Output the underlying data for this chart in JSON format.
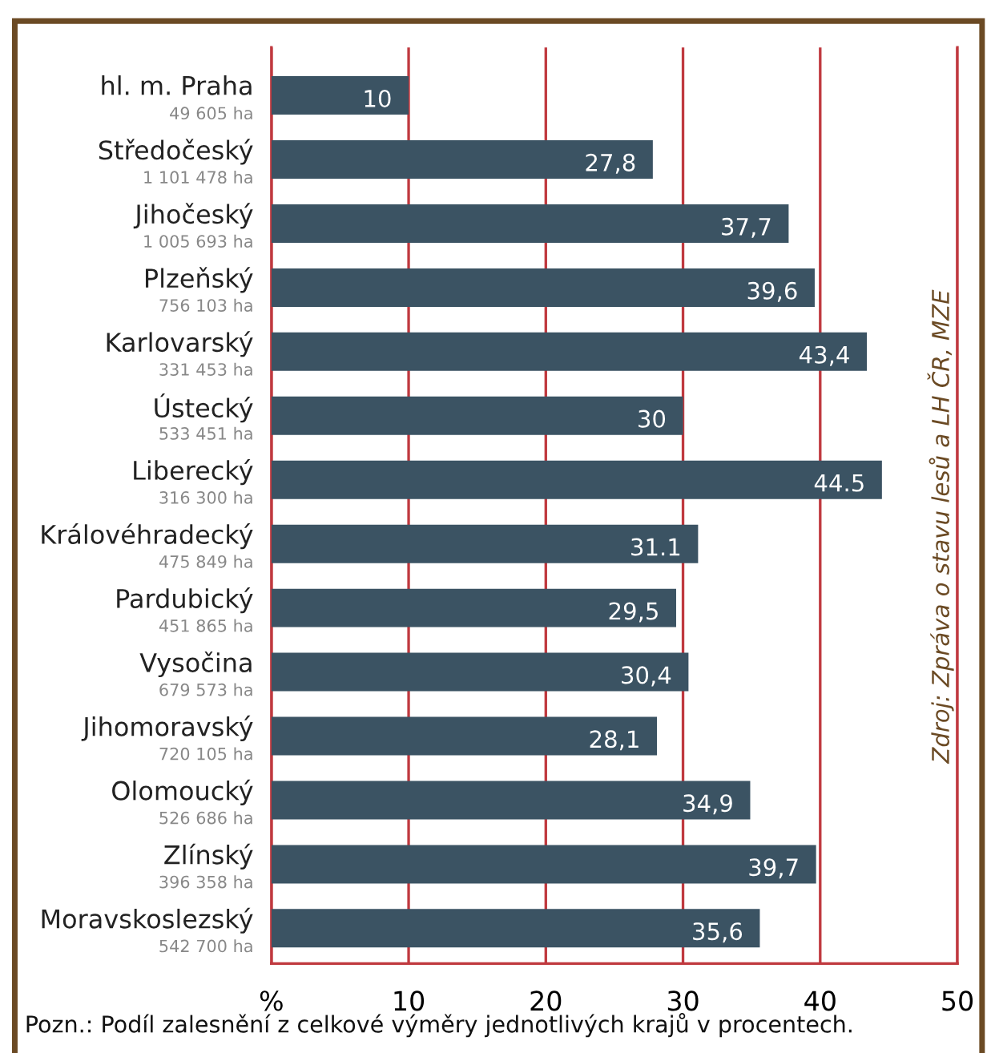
{
  "chart_data": {
    "type": "bar",
    "orientation": "horizontal",
    "categories": [
      "hl. m. Praha\n49 605 ha",
      "Středočeský\n1 101 478 ha",
      "Jihočeský\n1 005 693 ha",
      "Plzeňský\n756 103 ha",
      "Karlovarský\n331 453 ha",
      "Ústecký\n533 451 ha",
      "Liberecký\n316 300 ha",
      "Královéhradecký\n475 849 ha",
      "Pardubický\n451 865 ha",
      "Vysočina\n679 573 ha",
      "Jihomoravský\n720 105 ha",
      "Olomoucký\n526 686 ha",
      "Zlínský\n396 358 ha",
      "Moravskoslezský\n542 700 ha"
    ],
    "values": [
      10,
      27.8,
      37.7,
      39.6,
      43.4,
      30,
      44.5,
      31.1,
      29.5,
      30.4,
      28.1,
      34.9,
      39.7,
      35.6
    ],
    "value_labels": [
      "10",
      "27,8",
      "37,7",
      "39,6",
      "43,4",
      "30",
      "44.5",
      "31.1",
      "29,5",
      "30,4",
      "28,1",
      "34,9",
      "39,7",
      "35,6"
    ],
    "color": "#3b5363",
    "xlim": [
      0,
      50
    ],
    "xticks": [
      {
        "value": 0,
        "label": "%"
      },
      10,
      20,
      30,
      40,
      50
    ],
    "grid": "x",
    "annotations": [
      "Zdroj: Zpráva o stavu lesů a LH ČR, MZE",
      "Pozn.: Podíl zalesnění z celkové výměry jednotlivých krajů v procentech."
    ]
  }
}
